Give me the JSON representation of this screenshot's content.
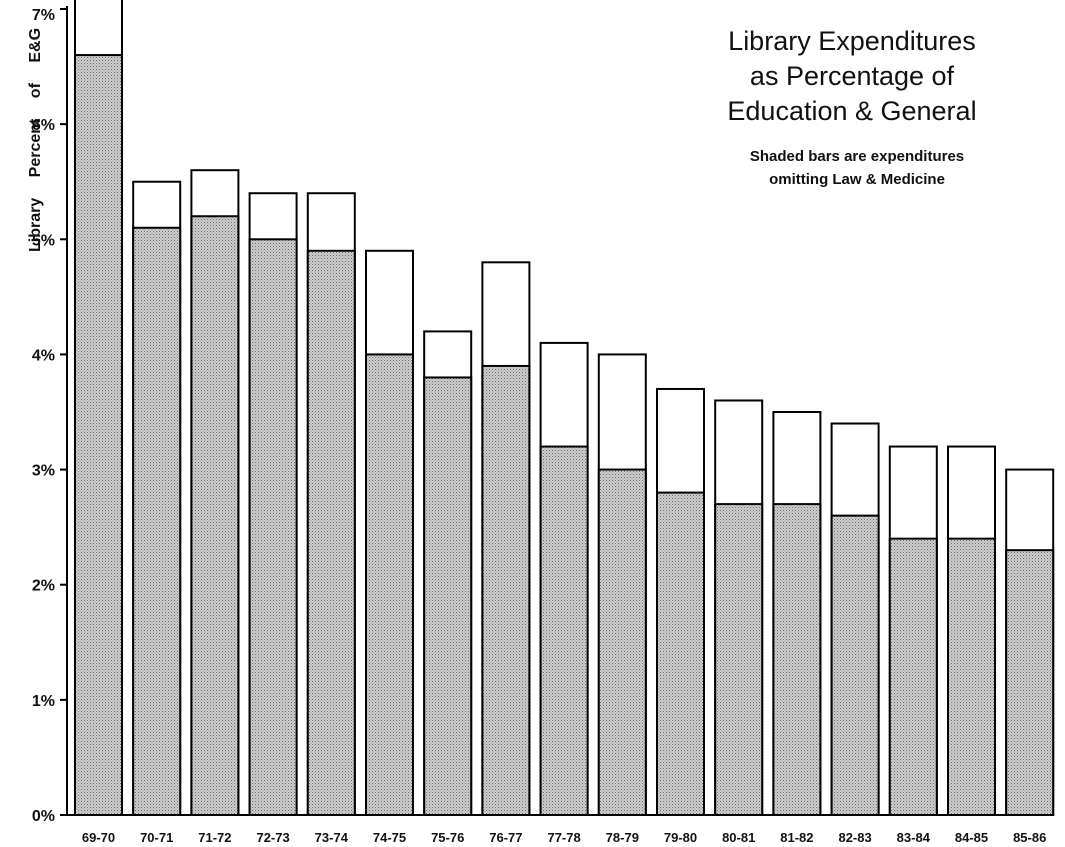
{
  "chart_data": {
    "type": "bar",
    "title": [
      "Library Expenditures",
      "as Percentage of",
      "Education & General"
    ],
    "subtitle": [
      "Shaded bars are expenditures",
      "omitting Law & Medicine"
    ],
    "ylabel": "Library Percent of E&G",
    "xlabel": "",
    "ylim": [
      0,
      7
    ],
    "yticks": [
      "0%",
      "1%",
      "2%",
      "3%",
      "4%",
      "5%",
      "6%",
      "7%"
    ],
    "grid": false,
    "legend": "none",
    "categories": [
      "69-70",
      "70-71",
      "71-72",
      "72-73",
      "73-74",
      "74-75",
      "75-76",
      "76-77",
      "77-78",
      "78-79",
      "79-80",
      "80-81",
      "81-82",
      "82-83",
      "83-84",
      "84-85",
      "85-86"
    ],
    "series": [
      {
        "values": [
          7.1,
          5.5,
          5.6,
          5.4,
          5.4,
          4.9,
          4.2,
          4.8,
          4.1,
          4.0,
          3.7,
          3.6,
          3.5,
          3.4,
          3.2,
          3.2,
          3.0
        ]
      },
      {
        "name": "Shaded bars are expenditures omitting Law & Medicine",
        "values": [
          6.6,
          5.1,
          5.2,
          5.0,
          4.9,
          4.0,
          3.8,
          3.9,
          3.2,
          3.0,
          2.8,
          2.7,
          2.7,
          2.6,
          2.4,
          2.4,
          2.3
        ]
      }
    ],
    "colors": {
      "shaded": "#c8c8c8",
      "outline": "#000000",
      "background": "#ffffff"
    }
  }
}
